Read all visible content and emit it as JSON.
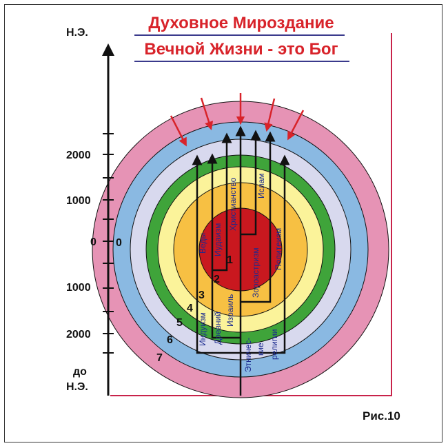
{
  "title": {
    "line1": "Духовное Мироздание",
    "line2": "Вечной Жизни - это Бог"
  },
  "figure_label": "Рис.10",
  "axis": {
    "top_label": "Н.Э.",
    "bottom_label_line1": "до",
    "bottom_label_line2": "Н.Э.",
    "ticks_ad": [
      "2000",
      "1000"
    ],
    "tick_zero": "0",
    "ticks_bc": [
      "1000",
      "2000"
    ]
  },
  "rings": {
    "labels": [
      "0",
      "1",
      "2",
      "3",
      "4",
      "5",
      "6",
      "7"
    ],
    "colors": [
      "#e693b5",
      "#8ab9e2",
      "#d8d9ee",
      "#3fa43a",
      "#fbf39a",
      "#f7c043",
      "#c9181f"
    ]
  },
  "religions": {
    "vedy": "Веды",
    "iudaizm": "Иудаизм",
    "khristianstvo": "Христианство",
    "islam": "Ислам",
    "zoroastrizm": "Зороастризм",
    "politeizm": "Политеизм",
    "induizm": "Индуизм",
    "drevniy": "Древний",
    "izrail": "Израиль",
    "etnich_1": "Этничес-",
    "etnich_2": "кие",
    "etnich_3": "религии"
  },
  "accent_colors": {
    "title": "#d8232a",
    "arrows_in": "#d8232a",
    "religion_text": "#1b2a8f",
    "frame_lines": "#c8234a"
  }
}
